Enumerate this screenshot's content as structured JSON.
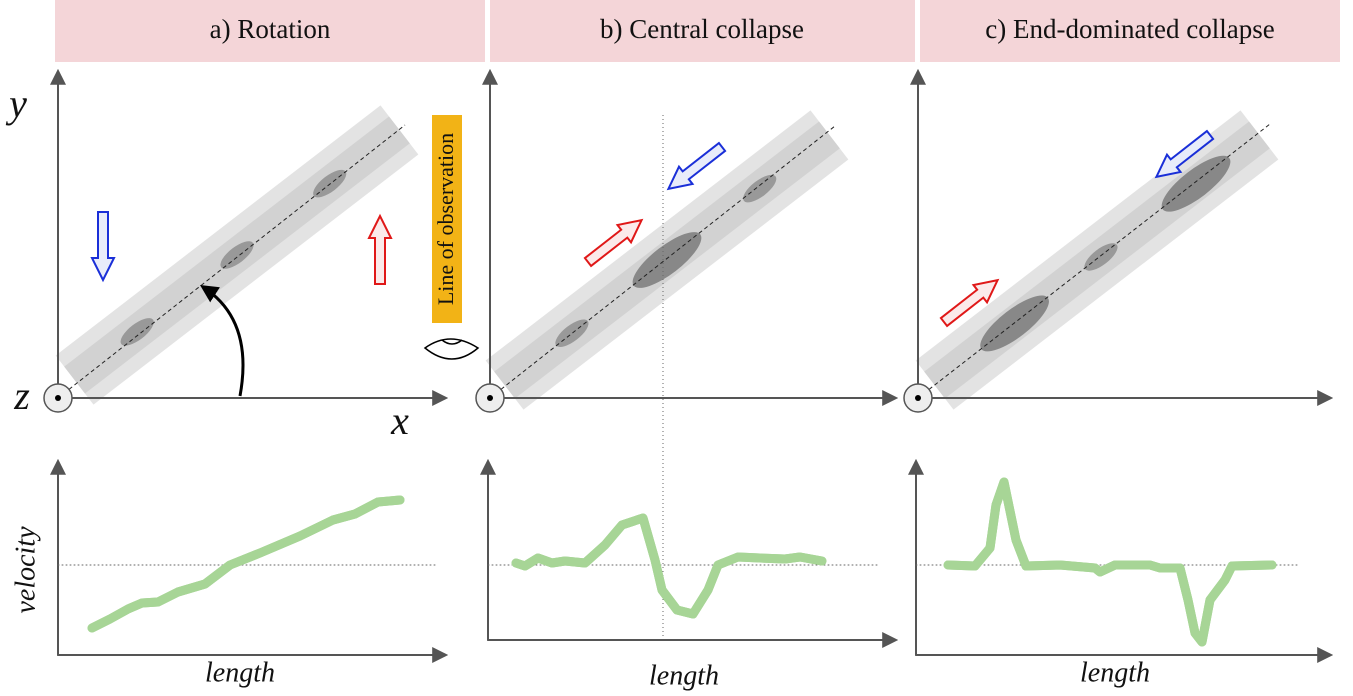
{
  "panels": [
    {
      "title": "a) Rotation",
      "plot_x_label": "length"
    },
    {
      "title": "b) Central collapse",
      "plot_x_label": "length"
    },
    {
      "title": "c) End-dominated collapse",
      "plot_x_label": "length"
    }
  ],
  "axis_labels": {
    "y": "y",
    "x": "x",
    "z": "z"
  },
  "line_of_observation": "Line of observation",
  "plot_y_label": "velocity"
}
